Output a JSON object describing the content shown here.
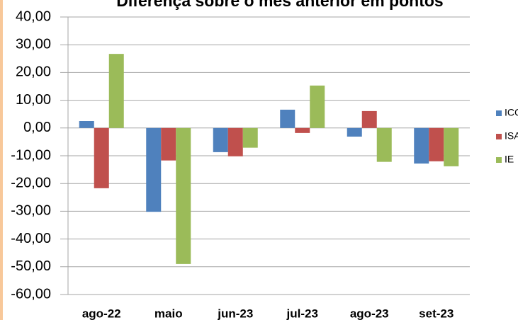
{
  "chart_data": {
    "type": "bar",
    "title": "Diferença sobre o mês anterior em pontos",
    "categories": [
      "ago-22",
      "maio",
      "jun-23",
      "jul-23",
      "ago-23",
      "set-23"
    ],
    "series": [
      {
        "name": "ICC",
        "color": "#4f81bd",
        "values": [
          2.5,
          -30.2,
          -8.7,
          6.6,
          -3.1,
          -12.8
        ]
      },
      {
        "name": "ISA",
        "color": "#c0504d",
        "values": [
          -21.7,
          -11.7,
          -10.2,
          -1.8,
          6.1,
          -12.0
        ]
      },
      {
        "name": "IE",
        "color": "#9bbb59",
        "values": [
          26.7,
          -49.0,
          -7.1,
          15.3,
          -12.2,
          -13.8
        ]
      }
    ],
    "ylim": [
      -60,
      40
    ],
    "yticks": [
      {
        "value": -60,
        "label": "-60,00"
      },
      {
        "value": -50,
        "label": "-50,00"
      },
      {
        "value": -40,
        "label": "-40,00"
      },
      {
        "value": -30,
        "label": "-30,00"
      },
      {
        "value": -20,
        "label": "-20,00"
      },
      {
        "value": -10,
        "label": "-10,00"
      },
      {
        "value": 0,
        "label": "0,00"
      },
      {
        "value": 10,
        "label": "10,00"
      },
      {
        "value": 20,
        "label": "20,00"
      },
      {
        "value": 30,
        "label": "30,00"
      },
      {
        "value": 40,
        "label": "40,00"
      }
    ],
    "grid": true,
    "legend": "right"
  }
}
